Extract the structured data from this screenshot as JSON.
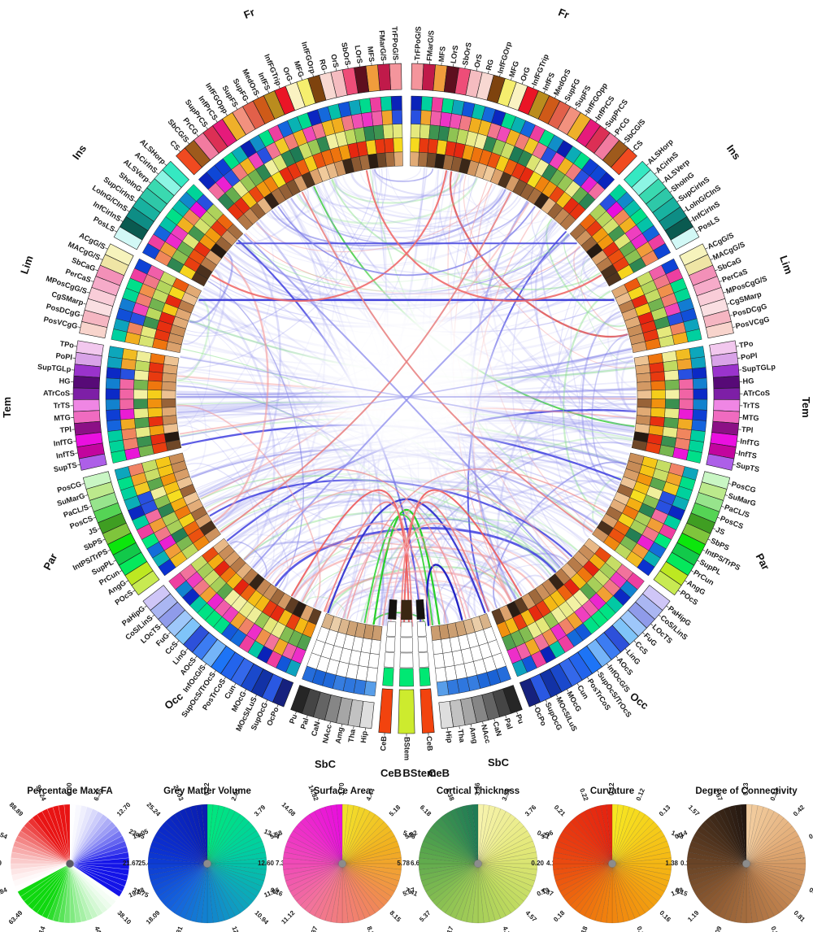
{
  "figure": {
    "type": "connectogram",
    "hemispheres": [
      "left",
      "right"
    ],
    "groups": [
      {
        "id": "Fr",
        "label": "Fr",
        "regions": [
          "TrFPoG/S",
          "FMarG/S",
          "MFS",
          "LOrS",
          "SbOrS",
          "OrS",
          "RG",
          "InfFGOrp",
          "MFG",
          "OrG",
          "InfFGTrip",
          "InfFS",
          "MedOrS",
          "SupFG",
          "SupFS",
          "InfFGOpp",
          "InfPrCS",
          "SupPrCS",
          "PrCG",
          "SbCG/S",
          "CS"
        ],
        "colors": [
          "#f4959c",
          "#c01a4a",
          "#f09c3c",
          "#5e0f1e",
          "#ee4d78",
          "#f5bcc0",
          "#f8d8d2",
          "#7e430e",
          "#f5ee6e",
          "#faf2c2",
          "#ea1526",
          "#ba8c1e",
          "#cf5a18",
          "#e2604a",
          "#f2917e",
          "#efb02a",
          "#e61a7b",
          "#dc2f55",
          "#f27ba0",
          "#9e5a1c",
          "#f04a20"
        ]
      },
      {
        "id": "Ins",
        "label": "Ins",
        "regions": [
          "ALSHorp",
          "ACirInS",
          "ALSVerp",
          "ShoInG",
          "SupCirInS",
          "LoInG/CInS",
          "InfCirInS",
          "PosLS"
        ],
        "colors": [
          "#35e8c2",
          "#8cf5e4",
          "#3ad9b0",
          "#2ec8a8",
          "#18b2a0",
          "#0e8d85",
          "#0a5a50",
          "#d2f8f6"
        ]
      },
      {
        "id": "Lim",
        "label": "Lim",
        "regions": [
          "ACgG/S",
          "MACgG/S",
          "SbCaG",
          "PerCaS",
          "MPosCgG/S",
          "CgSMarp",
          "PosDCgG",
          "PosVCgG"
        ],
        "colors": [
          "#f6f3bc",
          "#efe5a5",
          "#f390b8",
          "#f6abc9",
          "#f9cdd8",
          "#fadfe2",
          "#f5b6c2",
          "#f8d4cc"
        ]
      },
      {
        "id": "Tem",
        "label": "Tem",
        "regions": [
          "TPo",
          "PoPl",
          "SupTGLp",
          "HG",
          "ATrCoS",
          "TrTS",
          "MTG",
          "TPl",
          "InfTG",
          "InfTS",
          "SupTS"
        ],
        "colors": [
          "#f2c8ee",
          "#d9a3e8",
          "#9a33cc",
          "#570a77",
          "#7d1fa6",
          "#ef86e4",
          "#f06bc0",
          "#8c1086",
          "#ea10e0",
          "#c2059e",
          "#ad5fe8"
        ]
      },
      {
        "id": "Par",
        "label": "Par",
        "regions": [
          "PosCG",
          "SuMarG",
          "PaCL/S",
          "PosCS",
          "JS",
          "SbPS",
          "IntPS/TrPS",
          "SupPL",
          "PrCun",
          "AngG",
          "POcS"
        ],
        "colors": [
          "#c9f6c4",
          "#bce98c",
          "#97e48c",
          "#55d455",
          "#3f9e22",
          "#7fc53c",
          "#0ce60c",
          "#12c94a",
          "#05e85c",
          "#bde821",
          "#c8ea52"
        ]
      },
      {
        "id": "Occ",
        "label": "Occ",
        "regions": [
          "PaHipG",
          "CoS/LinS",
          "LOcTS",
          "FuG",
          "CcS",
          "LinG",
          "AOcS",
          "InfOcG/S",
          "SupOcS/TrOcS",
          "PosTrCoS",
          "Cun",
          "MOcG",
          "MOcS/LuS",
          "SupOcG",
          "OcPo"
        ],
        "colors": [
          "#cfc6f7",
          "#aab6f2",
          "#8f9bea",
          "#9ec7fa",
          "#7fc4f9",
          "#2d50da",
          "#3c7cf2",
          "#74b4f8",
          "#1d74f6",
          "#2364ec",
          "#3468ea",
          "#1a49cc",
          "#1232a6",
          "#2a58e2",
          "#16217e"
        ]
      },
      {
        "id": "SbC",
        "label": "SbC",
        "regions": [
          "Pu",
          "Pal",
          "CaN",
          "NAcc",
          "Amg",
          "Tha",
          "Hip"
        ],
        "colors": [
          "#262626",
          "#454545",
          "#646464",
          "#868686",
          "#a6a6a6",
          "#c2c2c2",
          "#dedede"
        ]
      },
      {
        "id": "CeB",
        "label": "CeB",
        "regions": [
          "CeB"
        ],
        "colors": [
          "#f2430e"
        ]
      },
      {
        "id": "BStem",
        "label": "BStem",
        "regions": [
          "BStem"
        ],
        "colors": [
          "#cdeb2e"
        ]
      }
    ],
    "ring_metrics": [
      "Grey Matter Volume",
      "Surface Area",
      "Cortical Thickness",
      "Curvature",
      "Degree of Connectivity"
    ],
    "ring_palettes": {
      "gmv": [
        "#00e87c",
        "#00cfa0",
        "#0f9fc0",
        "#1565dd",
        "#0b2fd0",
        "#0a1db0"
      ],
      "sa": [
        "#f2e22b",
        "#f1ae1f",
        "#f0875a",
        "#f2739b",
        "#ef3ec0",
        "#e80ddd"
      ],
      "ct": [
        "#f7f3ae",
        "#e3e878",
        "#bcd95e",
        "#8fc353",
        "#55a44c",
        "#1d7a55"
      ],
      "curv": [
        "#f6e823",
        "#f5c016",
        "#f29a0f",
        "#ee6f0e",
        "#e93f10",
        "#e52310"
      ],
      "doc": [
        "#f3cfa2",
        "#dfa670",
        "#bb7e4b",
        "#8f5c33",
        "#5d3c22",
        "#221710"
      ],
      "sbc_gmv": [
        "#5aa0ea",
        "#1b64d8",
        "#0a36a0"
      ],
      "sbc_doc": [
        "#ecd0ac",
        "#c29060"
      ]
    },
    "link_colors": {
      "base": "#9898ee",
      "strong_blue": "#3a3ad8",
      "red": "#ee5a5a",
      "green": "#22cc22",
      "salmon": "#f0a0a0"
    },
    "bottom_labels": [
      "SbC",
      "CeB",
      "BStem",
      "CeB",
      "SbC"
    ]
  },
  "chart_data": [
    {
      "type": "pie",
      "title": "Percentage Max FA",
      "style": "color-wheel legend, three white-to-color fans (blue, green, red)",
      "tick_labels": [
        "0.00",
        "6.35",
        "12.70",
        "19.05",
        "25.40",
        "31.75",
        "38.10",
        "44.44",
        "50.79",
        "57.14",
        "63.49",
        "69.84",
        "76.19",
        "82.54",
        "88.89",
        "95.24"
      ],
      "range": [
        0.0,
        95.24
      ],
      "fan_colors": [
        "#1414e8",
        "#10d810",
        "#e81414"
      ]
    },
    {
      "type": "pie",
      "title": "Grey Matter Volume",
      "style": "continuous color-wheel legend",
      "tick_labels": [
        "0.22",
        "2.01",
        "3.79",
        "5.58",
        "7.37",
        "9.16",
        "10.94",
        "12.73",
        "14.52",
        "16.31",
        "18.09",
        "19.88",
        "21.67",
        "23.45",
        "25.24",
        "27.03"
      ],
      "range": [
        0.22,
        27.03
      ],
      "palette": [
        "#00e87c",
        "#00cfa0",
        "#0f9fc0",
        "#1565dd",
        "#0b2fd0",
        "#0a1db0"
      ]
    },
    {
      "type": "pie",
      "title": "Surface Area",
      "style": "continuous color-wheel legend",
      "tick_labels": [
        "3.70",
        "4.44",
        "5.18",
        "5.92",
        "6.67",
        "7.41",
        "8.15",
        "8.89",
        "9.63",
        "10.37",
        "11.12",
        "11.86",
        "12.60",
        "13.34",
        "14.08",
        "14.82"
      ],
      "range": [
        3.7,
        14.82
      ],
      "palette": [
        "#f2e22b",
        "#f1ae1f",
        "#f0875a",
        "#f2739b",
        "#ef3ec0",
        "#e80ddd"
      ]
    },
    {
      "type": "pie",
      "title": "Cortical Thickness",
      "style": "continuous color-wheel legend",
      "tick_labels": [
        "3.36",
        "3.56",
        "3.76",
        "3.96",
        "4.17",
        "4.37",
        "4.57",
        "4.77",
        "4.97",
        "5.17",
        "5.37",
        "5.57",
        "5.78",
        "5.98",
        "6.18",
        "6.38"
      ],
      "range": [
        3.36,
        6.38
      ],
      "palette": [
        "#f7f3ae",
        "#e3e878",
        "#bcd95e",
        "#8fc353",
        "#55a44c",
        "#1d7a55"
      ]
    },
    {
      "type": "pie",
      "title": "Curvature",
      "style": "continuous color-wheel legend",
      "tick_labels": [
        "0.12",
        "0.12",
        "0.13",
        "0.14",
        "0.14",
        "0.15",
        "0.16",
        "0.17",
        "0.17",
        "0.18",
        "0.18",
        "0.19",
        "0.20",
        "0.21",
        "0.21",
        "0.22"
      ],
      "range": [
        0.12,
        0.22
      ],
      "palette": [
        "#f6e823",
        "#f5c016",
        "#f29a0f",
        "#ee6f0e",
        "#e93f10",
        "#e52310"
      ]
    },
    {
      "type": "pie",
      "title": "Degree of Connectivity",
      "style": "continuous color-wheel legend",
      "tick_labels": [
        "0.23",
        "0.33",
        "0.42",
        "0.52",
        "0.61",
        "0.71",
        "0.81",
        "0.90",
        "1.00",
        "1.09",
        "1.19",
        "1.28",
        "1.38",
        "1.48",
        "1.57",
        "1.67"
      ],
      "range": [
        0.23,
        1.67
      ],
      "palette": [
        "#f3cfa2",
        "#dfa670",
        "#bb7e4b",
        "#8f5c33",
        "#5d3c22",
        "#221710"
      ]
    }
  ]
}
